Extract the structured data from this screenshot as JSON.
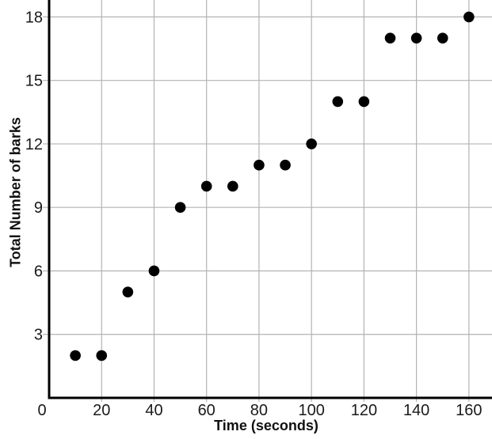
{
  "page": {
    "background": "#ffffff"
  },
  "chart_data": {
    "type": "scatter",
    "title": "",
    "xlabel": "Time (seconds)",
    "ylabel": "Total Number of barks",
    "x": [
      10,
      20,
      30,
      40,
      50,
      60,
      70,
      80,
      90,
      100,
      110,
      120,
      130,
      140,
      150,
      160
    ],
    "y": [
      2,
      2,
      5,
      6,
      9,
      10,
      10,
      11,
      11,
      12,
      14,
      14,
      17,
      17,
      17,
      18
    ],
    "xticks": [
      0,
      20,
      40,
      60,
      80,
      100,
      120,
      140,
      160
    ],
    "yticks": [
      0,
      3,
      6,
      9,
      12,
      15,
      18
    ],
    "xlim": [
      0,
      168.8
    ],
    "ylim": [
      0,
      18.8
    ],
    "grid": true,
    "legend": false,
    "marker": {
      "shape": "circle",
      "radius": 6.8,
      "color": "#000000"
    },
    "colors": {
      "point": "#000000",
      "grid": "#b3b3b3",
      "axis": "#000000",
      "text": "#1a1a1a"
    }
  }
}
